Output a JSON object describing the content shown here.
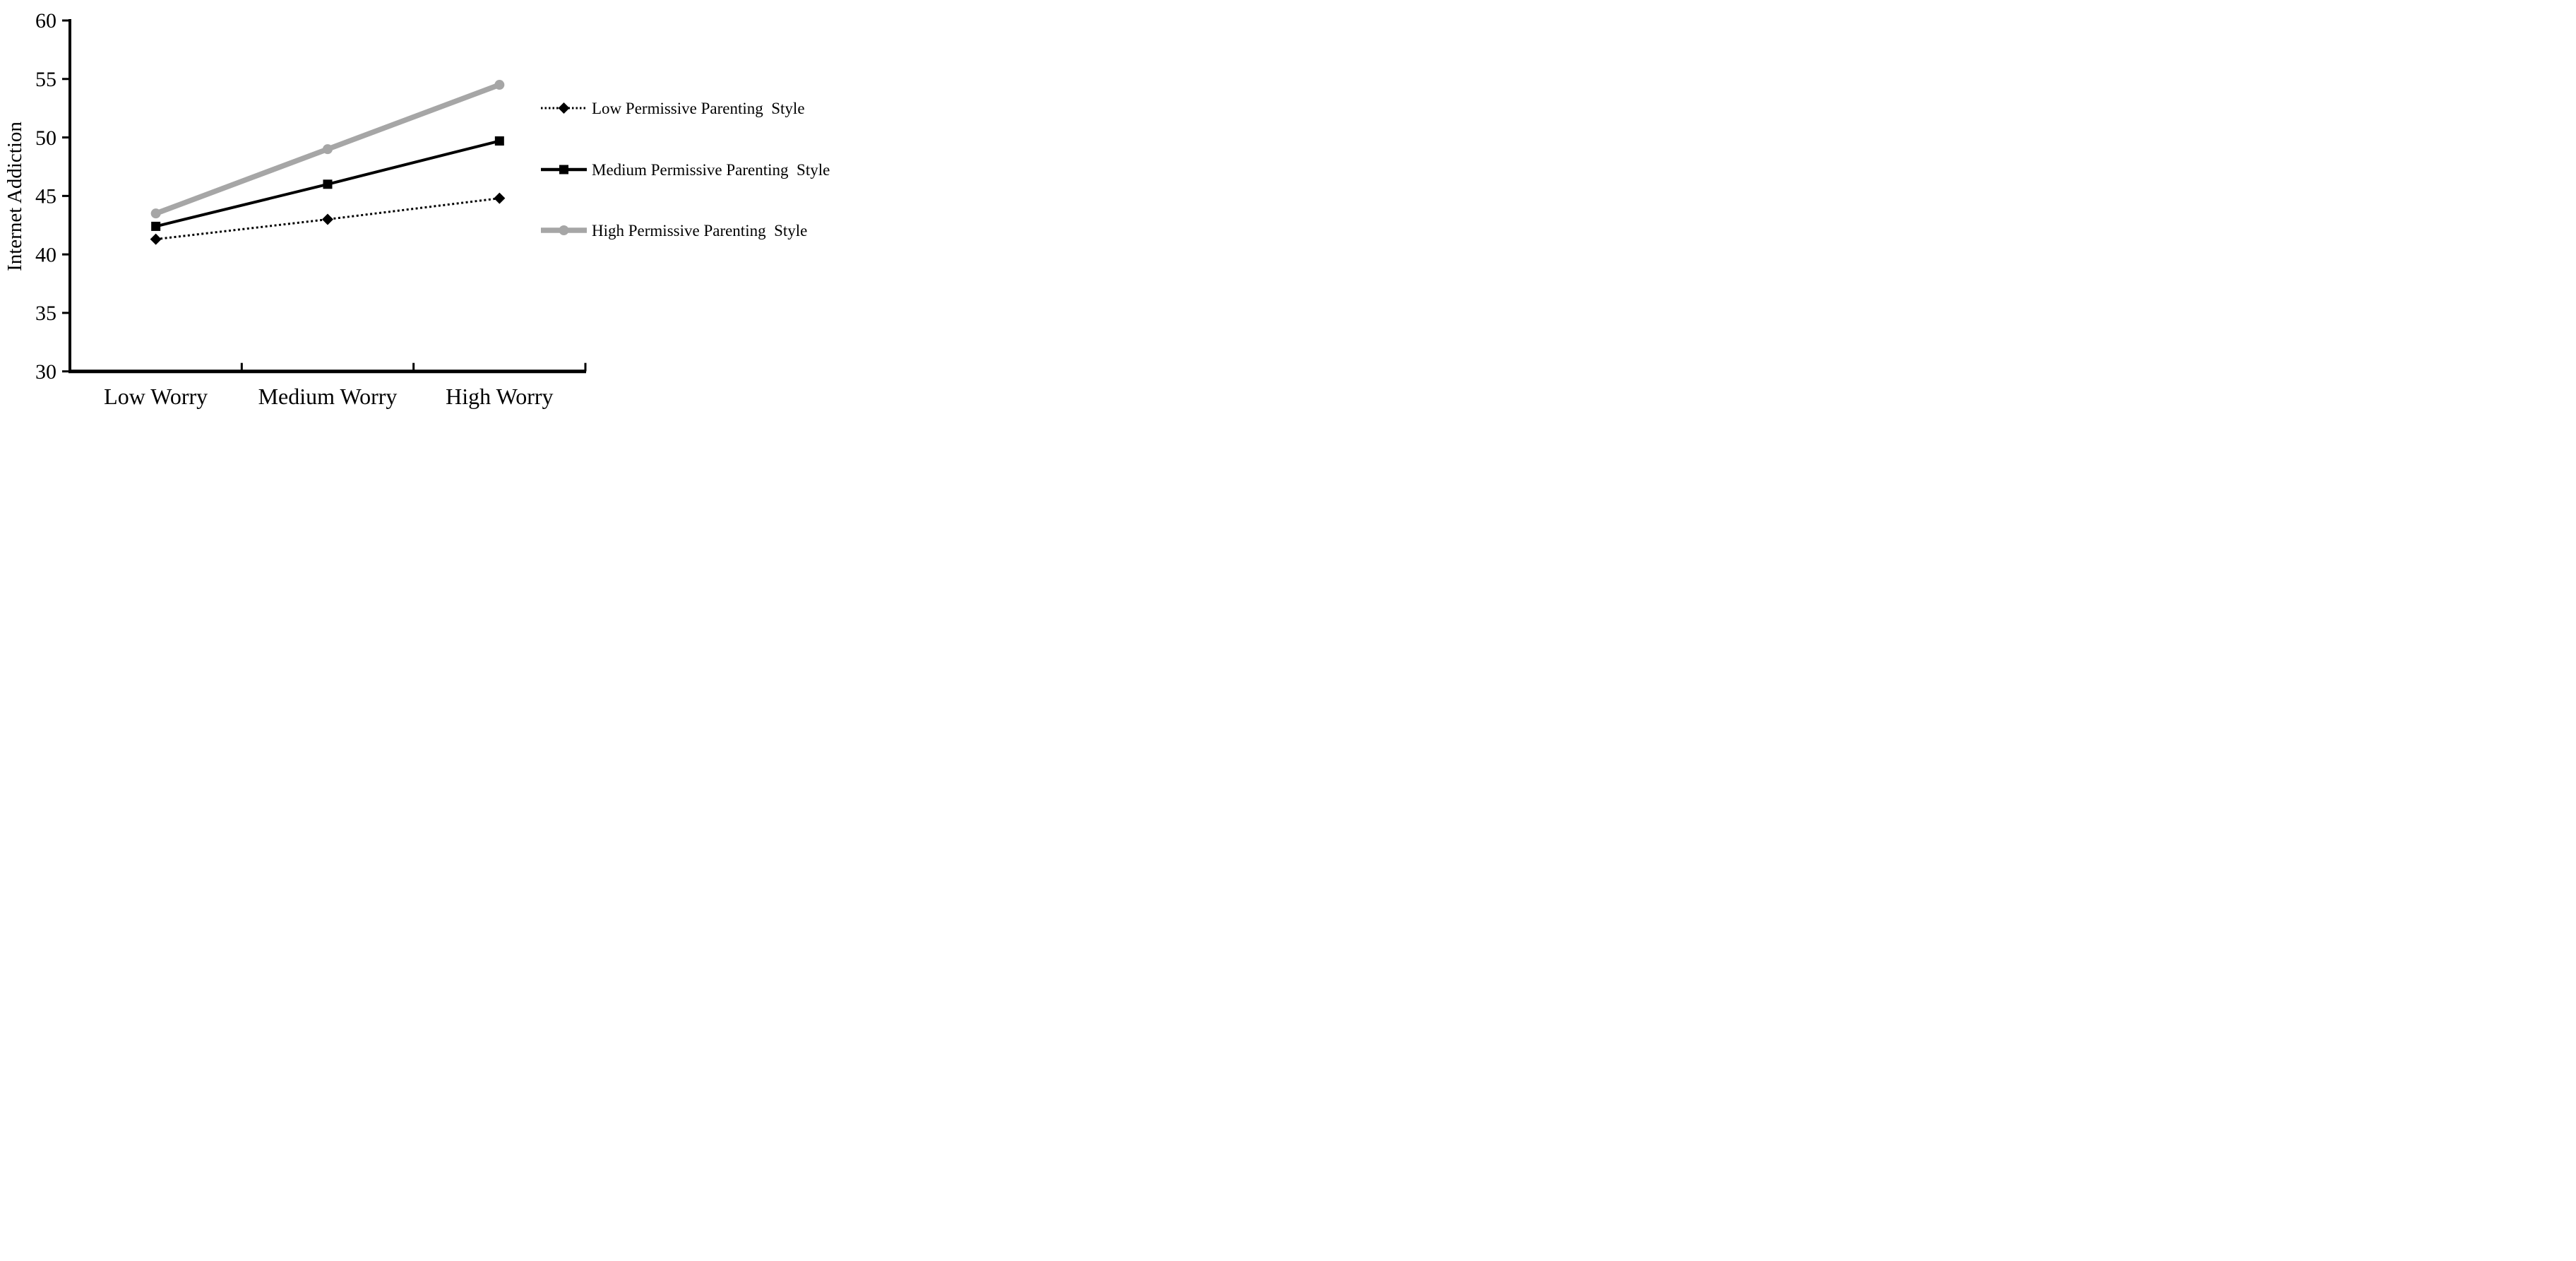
{
  "figure": {
    "background": "#ffffff",
    "axis_color": "#000000",
    "gray_series_color": "#a6a6a6"
  },
  "chart_data": {
    "type": "line",
    "title": "",
    "xlabel": "",
    "ylabel": "Internet Addiction",
    "ylim": [
      30,
      60
    ],
    "yticks": [
      30,
      35,
      40,
      45,
      50,
      55,
      60
    ],
    "categories": [
      "Low Worry",
      "Medium Worry",
      "High Worry"
    ],
    "series": [
      {
        "name": "Low Permissive Parenting  Style",
        "marker": "diamond",
        "line_style": "dotted",
        "color": "#000000",
        "values": [
          41.3,
          43.0,
          44.8
        ]
      },
      {
        "name": "Medium Permissive Parenting  Style",
        "marker": "square",
        "line_style": "solid",
        "color": "#000000",
        "values": [
          42.4,
          46.0,
          49.7
        ]
      },
      {
        "name": "High Permissive Parenting  Style",
        "marker": "circle",
        "line_style": "solid",
        "color": "#a6a6a6",
        "values": [
          43.5,
          49.0,
          54.5
        ]
      }
    ],
    "grid": false,
    "legend_position": "right-middle"
  }
}
